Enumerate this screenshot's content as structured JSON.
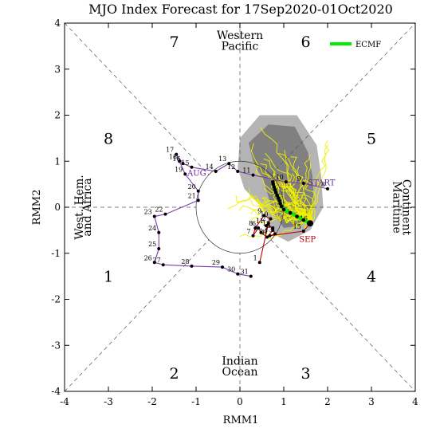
{
  "chart_data": {
    "type": "line",
    "title": "MJO Index Forecast for 17Sep2020-01Oct2020",
    "xlabel": "RMM1",
    "ylabel": "RMM2",
    "xlim": [
      -4,
      4
    ],
    "ylim": [
      -4,
      4
    ],
    "x_ticks": [
      "-4",
      "-3",
      "-2",
      "-1",
      "0",
      "1",
      "2",
      "3",
      "4"
    ],
    "y_ticks": [
      "-4",
      "-3",
      "-2",
      "-1",
      "0",
      "1",
      "2",
      "3",
      "4"
    ],
    "phases": [
      {
        "label": "1",
        "x": -3.0,
        "y": -1.5
      },
      {
        "label": "2",
        "x": -1.5,
        "y": -3.6
      },
      {
        "label": "3",
        "x": 1.5,
        "y": -3.6
      },
      {
        "label": "4",
        "x": 3.0,
        "y": -1.5
      },
      {
        "label": "5",
        "x": 3.0,
        "y": 1.5
      },
      {
        "label": "6",
        "x": 1.5,
        "y": 3.6
      },
      {
        "label": "7",
        "x": -1.5,
        "y": 3.6
      },
      {
        "label": "8",
        "x": -3.0,
        "y": 1.5
      }
    ],
    "regions": {
      "top": [
        "Western",
        "Pacific"
      ],
      "bottom": [
        "Indian",
        "Ocean"
      ],
      "left": [
        "West. Hem.",
        "and Africa"
      ],
      "right": [
        "Maritime",
        "Continent"
      ]
    },
    "legend": {
      "entries": [
        "ECMF"
      ],
      "position": "top-right",
      "color": "#00ee00"
    },
    "month_labels": [
      {
        "text": "AUG",
        "x": -1.2,
        "y": 0.68,
        "color": "#6a1fa0"
      },
      {
        "text": "SEP",
        "x": 1.35,
        "y": -0.75,
        "color": "#c00000"
      },
      {
        "text": "START",
        "x": 1.55,
        "y": 0.48,
        "color": "#5a2b8f"
      }
    ],
    "series": [
      {
        "name": "AUG",
        "color": "#7a3fa8",
        "points": [
          {
            "d": "8",
            "x": 2.0,
            "y": 0.4
          },
          {
            "d": "9",
            "x": 1.45,
            "y": 0.52
          },
          {
            "d": "10",
            "x": 1.05,
            "y": 0.55
          },
          {
            "d": "11",
            "x": 0.3,
            "y": 0.7
          },
          {
            "d": "12",
            "x": -0.05,
            "y": 0.78
          },
          {
            "d": "13",
            "x": -0.25,
            "y": 0.95
          },
          {
            "d": "14",
            "x": -0.55,
            "y": 0.78
          },
          {
            "d": "15",
            "x": -1.1,
            "y": 0.87
          },
          {
            "d": "16",
            "x": -1.3,
            "y": 0.95
          },
          {
            "d": "17",
            "x": -1.45,
            "y": 1.15
          },
          {
            "d": "18",
            "x": -1.38,
            "y": 1.0
          },
          {
            "d": "19",
            "x": -1.25,
            "y": 0.72
          },
          {
            "d": "20",
            "x": -0.95,
            "y": 0.35
          },
          {
            "d": "21",
            "x": -0.95,
            "y": 0.15
          },
          {
            "d": "22",
            "x": -1.7,
            "y": -0.15
          },
          {
            "d": "23",
            "x": -1.95,
            "y": -0.2
          },
          {
            "d": "24",
            "x": -1.85,
            "y": -0.55
          },
          {
            "d": "25",
            "x": -1.85,
            "y": -0.9
          },
          {
            "d": "26",
            "x": -1.95,
            "y": -1.2
          },
          {
            "d": "27",
            "x": -1.75,
            "y": -1.25
          },
          {
            "d": "28",
            "x": -1.1,
            "y": -1.28
          },
          {
            "d": "29",
            "x": -0.4,
            "y": -1.3
          },
          {
            "d": "30",
            "x": -0.05,
            "y": -1.45
          },
          {
            "d": "31",
            "x": 0.25,
            "y": -1.5
          }
        ]
      },
      {
        "name": "SEP",
        "color": "#c00000",
        "points": [
          {
            "d": "1",
            "x": 0.45,
            "y": -1.2
          },
          {
            "d": "2",
            "x": 0.65,
            "y": -0.35
          },
          {
            "d": "3",
            "x": 0.75,
            "y": -0.5
          },
          {
            "d": "4",
            "x": 0.62,
            "y": -0.65
          },
          {
            "d": "5",
            "x": 0.48,
            "y": -0.55
          },
          {
            "d": "6",
            "x": 0.42,
            "y": -0.45
          },
          {
            "d": "7",
            "x": 0.3,
            "y": -0.62
          },
          {
            "d": "8",
            "x": 0.35,
            "y": -0.45
          },
          {
            "d": "9",
            "x": 0.55,
            "y": -0.18
          },
          {
            "d": "10",
            "x": 0.7,
            "y": -0.25
          },
          {
            "d": "11",
            "x": 0.6,
            "y": -0.4
          },
          {
            "d": "12",
            "x": 0.75,
            "y": -0.45
          },
          {
            "d": "13",
            "x": 0.8,
            "y": -0.58
          },
          {
            "d": "14",
            "x": 0.68,
            "y": -0.62
          },
          {
            "d": "15",
            "x": 1.45,
            "y": -0.52
          },
          {
            "d": "16",
            "x": 1.6,
            "y": -0.35
          }
        ]
      }
    ],
    "forecast_mean": {
      "name": "ECMF",
      "color": "#00ee00",
      "x": [
        1.6,
        1.45,
        1.3,
        1.15,
        1.0,
        0.95,
        0.92,
        0.9,
        0.88,
        0.85,
        0.82,
        0.8,
        0.78,
        0.76,
        0.75
      ],
      "y": [
        -0.35,
        -0.28,
        -0.2,
        -0.12,
        -0.05,
        0.02,
        0.08,
        0.14,
        0.2,
        0.26,
        0.32,
        0.38,
        0.44,
        0.5,
        0.55
      ]
    },
    "spread": {
      "outer_color": "#b4b4b4",
      "inner_color": "#808080",
      "member_color": "#f0f000"
    }
  }
}
